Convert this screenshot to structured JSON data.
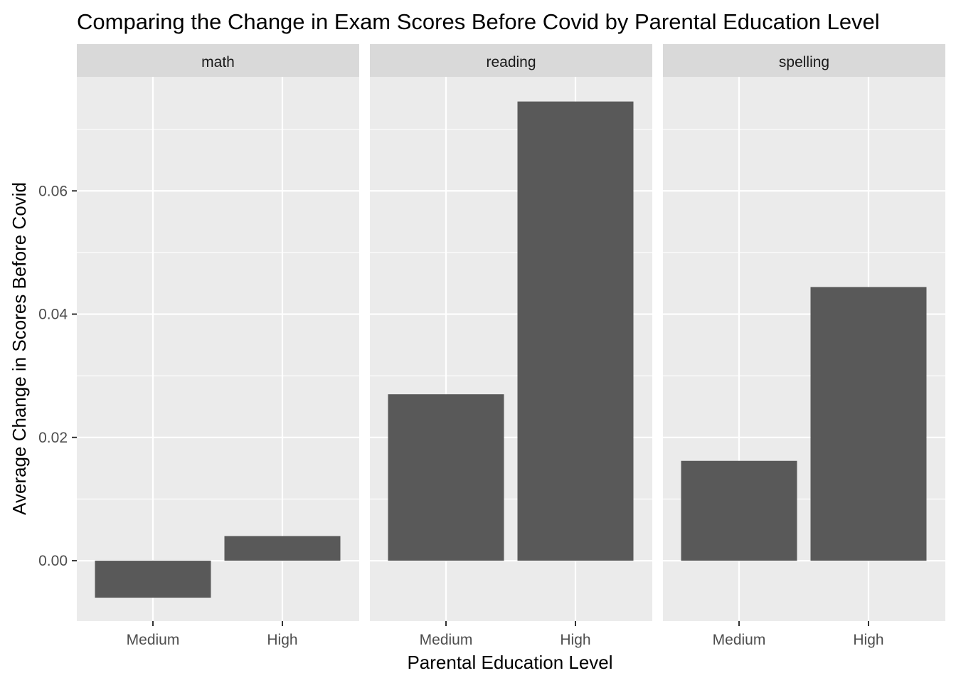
{
  "chart_data": {
    "type": "bar",
    "title": "Comparing the Change in Exam Scores Before Covid by Parental Education Level",
    "xlabel": "Parental Education Level",
    "ylabel": "Average Change in Scores Before Covid",
    "categories": [
      "Medium",
      "High"
    ],
    "facets": [
      {
        "name": "math",
        "values": [
          -0.006,
          0.004
        ]
      },
      {
        "name": "reading",
        "values": [
          0.027,
          0.0745
        ]
      },
      {
        "name": "spelling",
        "values": [
          0.0162,
          0.0444
        ]
      }
    ],
    "ylim": [
      -0.0098,
      0.0785
    ],
    "yticks": [
      0.0,
      0.02,
      0.04,
      0.06
    ],
    "ytick_labels": [
      "0.00",
      "0.02",
      "0.04",
      "0.06"
    ],
    "grid": true,
    "legend": "none",
    "colors": {
      "bar": "#595959",
      "panel_background": "#ebebeb",
      "strip_background": "#d9d9d9",
      "grid": "#ffffff"
    }
  }
}
